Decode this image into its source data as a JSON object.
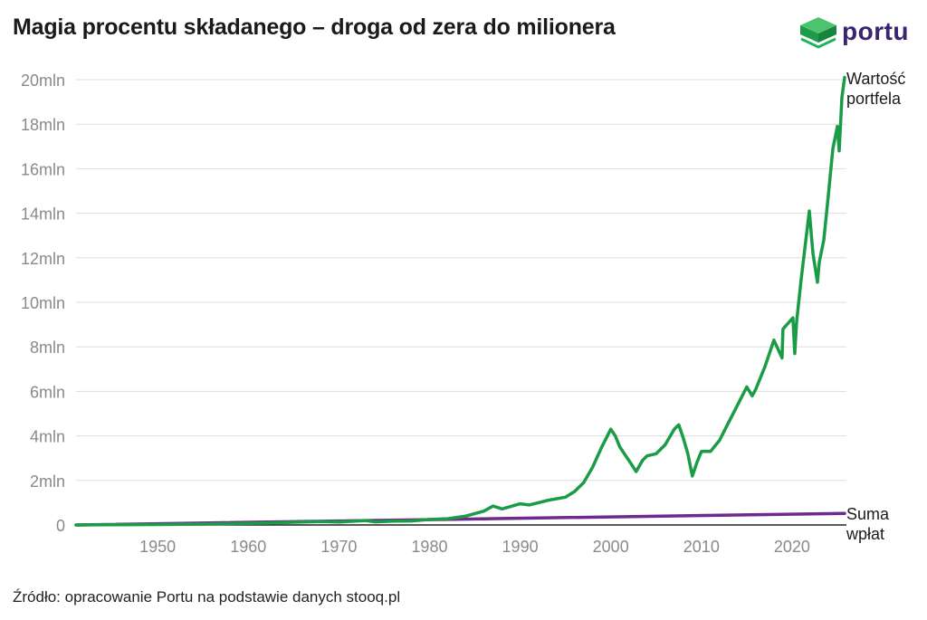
{
  "title": "Magia procentu składanego – droga od zera do milionera",
  "logo": {
    "text": "portu",
    "icon": "portu-cube-icon"
  },
  "source": "Źródło: opracowanie Portu na podstawie danych stooq.pl",
  "colors": {
    "portfolio": "#1a9c46",
    "contributions": "#6e2a8c",
    "grid": "#dddddd",
    "axis": "#222222",
    "tick_label": "#8a8a8a",
    "logo_green": "#22b35a",
    "logo_text": "#3a2470"
  },
  "chart_data": {
    "type": "line",
    "title": "Magia procentu składanego – droga od zera do milionera",
    "xlabel": "",
    "ylabel": "",
    "xlim": [
      1941,
      2026
    ],
    "ylim": [
      0,
      20
    ],
    "grid": true,
    "legend": "right-end-labels",
    "xticks": [
      1950,
      1960,
      1970,
      1980,
      1990,
      2000,
      2010,
      2020
    ],
    "yticks": [
      {
        "value": 0,
        "label": "0"
      },
      {
        "value": 2,
        "label": "2mln"
      },
      {
        "value": 4,
        "label": "4mln"
      },
      {
        "value": 6,
        "label": "6mln"
      },
      {
        "value": 8,
        "label": "8mln"
      },
      {
        "value": 10,
        "label": "10mln"
      },
      {
        "value": 12,
        "label": "12mln"
      },
      {
        "value": 14,
        "label": "14mln"
      },
      {
        "value": 16,
        "label": "16mln"
      },
      {
        "value": 18,
        "label": "18mln"
      },
      {
        "value": 20,
        "label": "20mln"
      }
    ],
    "series": [
      {
        "name": "Wartość portfela",
        "label_lines": [
          "Wartość",
          "portfela"
        ],
        "color": "#1a9c46",
        "points": [
          [
            1941,
            0.0
          ],
          [
            1945,
            0.01
          ],
          [
            1950,
            0.02
          ],
          [
            1955,
            0.04
          ],
          [
            1960,
            0.07
          ],
          [
            1962,
            0.08
          ],
          [
            1965,
            0.12
          ],
          [
            1968,
            0.15
          ],
          [
            1970,
            0.13
          ],
          [
            1972,
            0.18
          ],
          [
            1973,
            0.2
          ],
          [
            1974,
            0.14
          ],
          [
            1976,
            0.17
          ],
          [
            1978,
            0.18
          ],
          [
            1980,
            0.25
          ],
          [
            1982,
            0.28
          ],
          [
            1984,
            0.4
          ],
          [
            1986,
            0.62
          ],
          [
            1987,
            0.85
          ],
          [
            1988,
            0.72
          ],
          [
            1990,
            0.95
          ],
          [
            1991,
            0.9
          ],
          [
            1993,
            1.1
          ],
          [
            1995,
            1.25
          ],
          [
            1996,
            1.5
          ],
          [
            1997,
            1.9
          ],
          [
            1998,
            2.6
          ],
          [
            1999,
            3.5
          ],
          [
            2000,
            4.3
          ],
          [
            2000.5,
            4.0
          ],
          [
            2001,
            3.5
          ],
          [
            2002,
            2.9
          ],
          [
            2002.8,
            2.4
          ],
          [
            2003.5,
            2.9
          ],
          [
            2004,
            3.1
          ],
          [
            2005,
            3.2
          ],
          [
            2006,
            3.6
          ],
          [
            2007,
            4.3
          ],
          [
            2007.5,
            4.5
          ],
          [
            2008,
            3.9
          ],
          [
            2008.5,
            3.2
          ],
          [
            2009,
            2.2
          ],
          [
            2009.5,
            2.8
          ],
          [
            2010,
            3.3
          ],
          [
            2011,
            3.3
          ],
          [
            2012,
            3.8
          ],
          [
            2013,
            4.6
          ],
          [
            2014,
            5.4
          ],
          [
            2015,
            6.2
          ],
          [
            2015.6,
            5.8
          ],
          [
            2016,
            6.1
          ],
          [
            2017,
            7.1
          ],
          [
            2018,
            8.3
          ],
          [
            2018.9,
            7.5
          ],
          [
            2019,
            8.8
          ],
          [
            2020.1,
            9.3
          ],
          [
            2020.3,
            7.7
          ],
          [
            2020.5,
            9.1
          ],
          [
            2021,
            11.0
          ],
          [
            2021.9,
            14.1
          ],
          [
            2022.3,
            12.2
          ],
          [
            2022.8,
            10.9
          ],
          [
            2023,
            11.8
          ],
          [
            2023.5,
            12.8
          ],
          [
            2024,
            14.8
          ],
          [
            2024.5,
            16.9
          ],
          [
            2025,
            17.9
          ],
          [
            2025.2,
            16.8
          ],
          [
            2025.5,
            19.2
          ],
          [
            2025.8,
            20.1
          ]
        ]
      },
      {
        "name": "Suma wpłat",
        "label_lines": [
          "Suma",
          "wpłat"
        ],
        "color": "#6e2a8c",
        "points": [
          [
            1941,
            0.0
          ],
          [
            2025.8,
            0.52
          ]
        ]
      }
    ]
  }
}
